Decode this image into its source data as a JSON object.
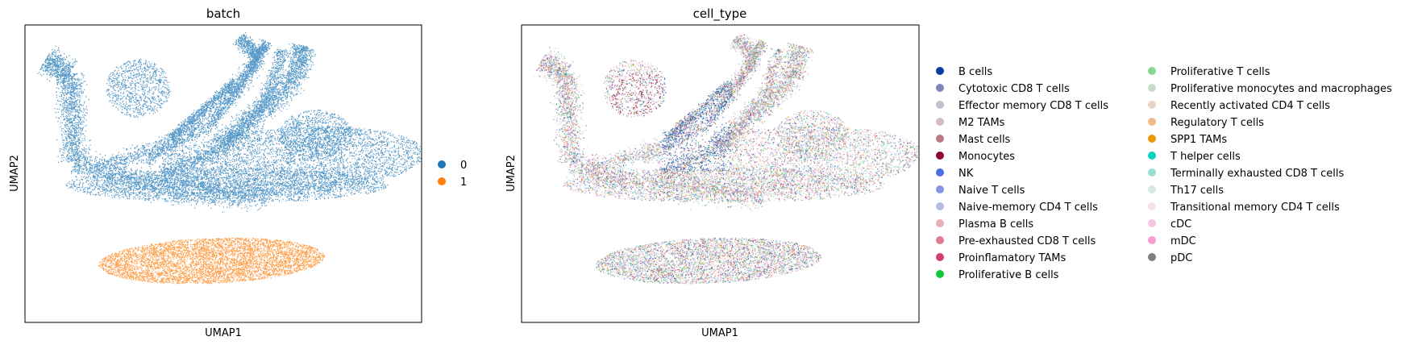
{
  "chart_data": [
    {
      "type": "scatter",
      "title": "batch",
      "xlabel": "UMAP1",
      "ylabel": "UMAP2",
      "legend_position": "right",
      "series": [
        {
          "name": "0",
          "color": "#1f77b4"
        },
        {
          "name": "1",
          "color": "#ff7f0e"
        }
      ]
    },
    {
      "type": "scatter",
      "title": "cell_type",
      "xlabel": "UMAP1",
      "ylabel": "UMAP2",
      "legend_position": "right",
      "series": [
        {
          "name": "B cells",
          "color": "#023fa5"
        },
        {
          "name": "Cytotoxic CD8 T cells",
          "color": "#7d87b9"
        },
        {
          "name": "Effector memory CD8 T cells",
          "color": "#bec1d4"
        },
        {
          "name": "M2 TAMs",
          "color": "#d6bcc0"
        },
        {
          "name": "Mast cells",
          "color": "#bb7784"
        },
        {
          "name": "Monocytes",
          "color": "#8e063b"
        },
        {
          "name": "NK",
          "color": "#4a6fe3"
        },
        {
          "name": "Naive T cells",
          "color": "#8595e1"
        },
        {
          "name": "Naive-memory CD4 T cells",
          "color": "#b5bbe3"
        },
        {
          "name": "Plasma B cells",
          "color": "#e6afb9"
        },
        {
          "name": "Pre-exhausted CD8 T cells",
          "color": "#e07b91"
        },
        {
          "name": "Proinflamatory TAMs",
          "color": "#d33f6a"
        },
        {
          "name": "Proliferative B cells",
          "color": "#11c638"
        },
        {
          "name": "Proliferative T cells",
          "color": "#8dd593"
        },
        {
          "name": "Proliferative monocytes and macrophages",
          "color": "#c6dec7"
        },
        {
          "name": "Recently activated CD4 T cells",
          "color": "#ead3c6"
        },
        {
          "name": "Regulatory T cells",
          "color": "#f0b98d"
        },
        {
          "name": "SPP1 TAMs",
          "color": "#ef9708"
        },
        {
          "name": "T helper cells",
          "color": "#0fcfc0"
        },
        {
          "name": "Terminally exhausted CD8 T cells",
          "color": "#9cded6"
        },
        {
          "name": "Th17 cells",
          "color": "#d5eae7"
        },
        {
          "name": "Transitional memory CD4 T cells",
          "color": "#f3e1eb"
        },
        {
          "name": "cDC",
          "color": "#f6c4e1"
        },
        {
          "name": "mDC",
          "color": "#f79cd4"
        },
        {
          "name": "pDC",
          "color": "#7f7f7f"
        }
      ]
    }
  ]
}
